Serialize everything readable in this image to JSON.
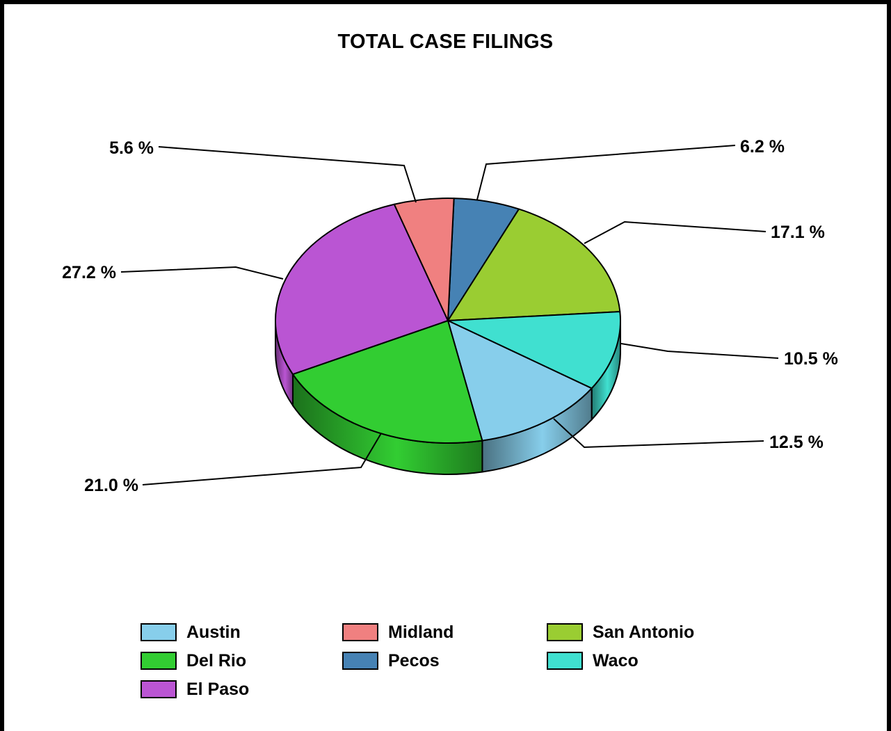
{
  "chart_data": {
    "type": "pie",
    "title": "TOTAL CASE FILINGS",
    "three_d": true,
    "slices": [
      {
        "name": "Pecos",
        "value": 6.2,
        "label": "6.2 %",
        "color": "#4682B4"
      },
      {
        "name": "San Antonio",
        "value": 17.1,
        "label": "17.1 %",
        "color": "#9ACD32"
      },
      {
        "name": "Waco",
        "value": 10.5,
        "label": "10.5 %",
        "color": "#40E0D0"
      },
      {
        "name": "Austin",
        "value": 12.5,
        "label": "12.5 %",
        "color": "#87CEEB"
      },
      {
        "name": "Del Rio",
        "value": 21.0,
        "label": "21.0 %",
        "color": "#32CD32"
      },
      {
        "name": "El Paso",
        "value": 27.2,
        "label": "27.2 %",
        "color": "#BA55D3"
      },
      {
        "name": "Midland",
        "value": 5.6,
        "label": "5.6 %",
        "color": "#F08080"
      }
    ],
    "legend": {
      "position": "bottom",
      "items": [
        {
          "label": "Austin",
          "color": "#87CEEB"
        },
        {
          "label": "Midland",
          "color": "#F08080"
        },
        {
          "label": "San Antonio",
          "color": "#9ACD32"
        },
        {
          "label": "Del Rio",
          "color": "#32CD32"
        },
        {
          "label": "Pecos",
          "color": "#4682B4"
        },
        {
          "label": "Waco",
          "color": "#40E0D0"
        },
        {
          "label": "El Paso",
          "color": "#BA55D3"
        }
      ]
    }
  }
}
